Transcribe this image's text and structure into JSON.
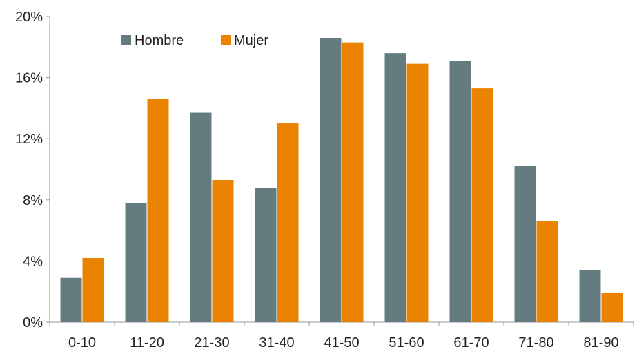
{
  "chart_data": {
    "type": "bar",
    "title": "",
    "xlabel": "",
    "ylabel": "",
    "categories": [
      "0-10",
      "11-20",
      "21-30",
      "31-40",
      "41-50",
      "51-60",
      "61-70",
      "71-80",
      "81-90"
    ],
    "series": [
      {
        "name": "Hombre",
        "color": "#647C80",
        "values": [
          2.9,
          7.8,
          13.7,
          8.8,
          18.6,
          17.6,
          17.1,
          10.2,
          3.4
        ]
      },
      {
        "name": "Mujer",
        "color": "#E98300",
        "values": [
          4.2,
          14.6,
          9.3,
          13.0,
          18.3,
          16.9,
          15.3,
          6.6,
          1.9
        ]
      }
    ],
    "ylim": [
      0,
      20
    ],
    "yticks": [
      0,
      4,
      8,
      12,
      16,
      20
    ],
    "ytick_labels": [
      "0%",
      "4%",
      "8%",
      "12%",
      "16%",
      "20%"
    ],
    "grid": false,
    "legend_position": "top-left"
  }
}
